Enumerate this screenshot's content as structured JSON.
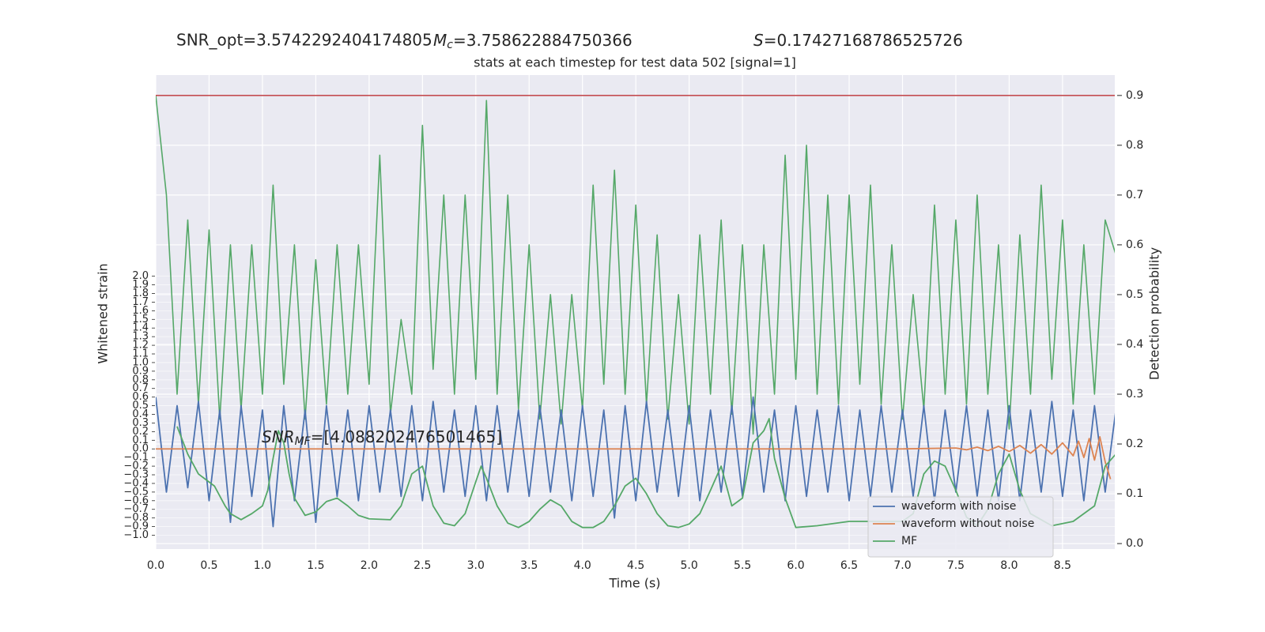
{
  "chart_data": {
    "type": "line",
    "annotations": [
      {
        "text": "SNR_opt=3.5742292404174805"
      },
      {
        "symbol": "M",
        "subscript": "c",
        "text": "=3.758622884750366"
      },
      {
        "symbol": "S",
        "text": "=0.17427168786525726"
      },
      {
        "symbol": "SNR",
        "subscript": "MF",
        "text": "=[4.088202476501465]"
      }
    ],
    "title": "stats at each timestep for test data 502 [signal=1]",
    "xlabel": "Time (s)",
    "ylabel": "Whitened strain",
    "y2label": "Detection probability",
    "xlim": [
      0,
      8.99
    ],
    "ylim": [
      -1.16,
      4.33
    ],
    "y2lim": [
      -0.011,
      0.941
    ],
    "xticks": [
      {
        "value": 0,
        "label": "0.0"
      },
      {
        "value": 0.5,
        "label": "0.5"
      },
      {
        "value": 1,
        "label": "1.0"
      },
      {
        "value": 1.5,
        "label": "1.5"
      },
      {
        "value": 2,
        "label": "2.0"
      },
      {
        "value": 2.5,
        "label": "2.5"
      },
      {
        "value": 3,
        "label": "3.0"
      },
      {
        "value": 3.5,
        "label": "3.5"
      },
      {
        "value": 4,
        "label": "4.0"
      },
      {
        "value": 4.5,
        "label": "4.5"
      },
      {
        "value": 5,
        "label": "5.0"
      },
      {
        "value": 5.5,
        "label": "5.5"
      },
      {
        "value": 6,
        "label": "6.0"
      },
      {
        "value": 6.5,
        "label": "6.5"
      },
      {
        "value": 7,
        "label": "7.0"
      },
      {
        "value": 7.5,
        "label": "7.5"
      },
      {
        "value": 8,
        "label": "8.0"
      },
      {
        "value": 8.5,
        "label": "8.5"
      }
    ],
    "yticks": [
      {
        "value": -1,
        "label": "−1.0"
      },
      {
        "value": -0.9,
        "label": "−0.9"
      },
      {
        "value": -0.8,
        "label": "−0.8"
      },
      {
        "value": -0.7,
        "label": "−0.7"
      },
      {
        "value": -0.6,
        "label": "−0.6"
      },
      {
        "value": -0.5,
        "label": "−0.5"
      },
      {
        "value": -0.4,
        "label": "−0.4"
      },
      {
        "value": -0.3,
        "label": "−0.3"
      },
      {
        "value": -0.2,
        "label": "−0.2"
      },
      {
        "value": -0.1,
        "label": "−0.1"
      },
      {
        "value": 0,
        "label": "0.0"
      },
      {
        "value": 0.1,
        "label": "0.1"
      },
      {
        "value": 0.2,
        "label": "0.2"
      },
      {
        "value": 0.3,
        "label": "0.3"
      },
      {
        "value": 0.4,
        "label": "0.4"
      },
      {
        "value": 0.5,
        "label": "0.5"
      },
      {
        "value": 0.6,
        "label": "0.6"
      },
      {
        "value": 0.7,
        "label": "0.7"
      },
      {
        "value": 0.8,
        "label": "0.8"
      },
      {
        "value": 0.9,
        "label": "0.9"
      },
      {
        "value": 1,
        "label": "1.0"
      },
      {
        "value": 1.1,
        "label": "1.1"
      },
      {
        "value": 1.2,
        "label": "1.2"
      },
      {
        "value": 1.3,
        "label": "1.3"
      },
      {
        "value": 1.4,
        "label": "1.4"
      },
      {
        "value": 1.5,
        "label": "1.5"
      },
      {
        "value": 1.6,
        "label": "1.6"
      },
      {
        "value": 1.7,
        "label": "1.7"
      },
      {
        "value": 1.8,
        "label": "1.8"
      },
      {
        "value": 1.9,
        "label": "1.9"
      },
      {
        "value": 2,
        "label": "2.0"
      }
    ],
    "y2ticks": [
      {
        "value": 0,
        "label": "0.0"
      },
      {
        "value": 0.1,
        "label": "0.1"
      },
      {
        "value": 0.2,
        "label": "0.2"
      },
      {
        "value": 0.3,
        "label": "0.3"
      },
      {
        "value": 0.4,
        "label": "0.4"
      },
      {
        "value": 0.5,
        "label": "0.5"
      },
      {
        "value": 0.6,
        "label": "0.6"
      },
      {
        "value": 0.7,
        "label": "0.7"
      },
      {
        "value": 0.8,
        "label": "0.8"
      },
      {
        "value": 0.9,
        "label": "0.9"
      }
    ],
    "grid": true,
    "legend": "lower right",
    "hlines": [
      {
        "value": 0.9,
        "axis": "y2",
        "color": "#c44e52"
      }
    ],
    "series": [
      {
        "axis": "y2",
        "color": "#55a868",
        "x": [
          0,
          0.1,
          0.2,
          0.3,
          0.4,
          0.5,
          0.6,
          0.7,
          0.8,
          0.9,
          1,
          1.1,
          1.2,
          1.3,
          1.4,
          1.5,
          1.6,
          1.7,
          1.8,
          1.9,
          2,
          2.1,
          2.2,
          2.3,
          2.4,
          2.5,
          2.6,
          2.7,
          2.8,
          2.9,
          3,
          3.1,
          3.2,
          3.3,
          3.4,
          3.5,
          3.6,
          3.7,
          3.8,
          3.9,
          4,
          4.1,
          4.2,
          4.3,
          4.4,
          4.5,
          4.6,
          4.7,
          4.8,
          4.9,
          5,
          5.1,
          5.2,
          5.3,
          5.4,
          5.5,
          5.6,
          5.7,
          5.8,
          5.9,
          6,
          6.1,
          6.2,
          6.3,
          6.4,
          6.5,
          6.6,
          6.7,
          6.8,
          6.9,
          7,
          7.1,
          7.2,
          7.3,
          7.4,
          7.5,
          7.6,
          7.7,
          7.8,
          7.9,
          8,
          8.1,
          8.2,
          8.3,
          8.4,
          8.5,
          8.6,
          8.7,
          8.8,
          8.9,
          9
        ],
        "values": [
          0.9,
          0.7,
          0.3,
          0.65,
          0.28,
          0.63,
          0.25,
          0.6,
          0.27,
          0.6,
          0.3,
          0.72,
          0.32,
          0.6,
          0.25,
          0.57,
          0.28,
          0.6,
          0.3,
          0.6,
          0.32,
          0.78,
          0.26,
          0.45,
          0.3,
          0.84,
          0.35,
          0.7,
          0.3,
          0.7,
          0.33,
          0.89,
          0.3,
          0.7,
          0.27,
          0.6,
          0.25,
          0.5,
          0.24,
          0.5,
          0.27,
          0.72,
          0.32,
          0.75,
          0.3,
          0.68,
          0.28,
          0.62,
          0.25,
          0.5,
          0.24,
          0.62,
          0.3,
          0.65,
          0.26,
          0.6,
          0.22,
          0.6,
          0.3,
          0.78,
          0.33,
          0.8,
          0.3,
          0.7,
          0.28,
          0.7,
          0.32,
          0.72,
          0.28,
          0.6,
          0.25,
          0.5,
          0.27,
          0.68,
          0.3,
          0.65,
          0.28,
          0.7,
          0.3,
          0.6,
          0.23,
          0.62,
          0.3,
          0.72,
          0.33,
          0.65,
          0.28,
          0.6,
          0.3,
          0.65,
          0.58
        ]
      },
      {
        "name": "waveform with noise",
        "color": "#4c72b0",
        "x": [
          0,
          0.1,
          0.2,
          0.3,
          0.4,
          0.5,
          0.6,
          0.7,
          0.8,
          0.9,
          1,
          1.1,
          1.2,
          1.3,
          1.4,
          1.5,
          1.6,
          1.7,
          1.8,
          1.9,
          2,
          2.1,
          2.2,
          2.3,
          2.4,
          2.5,
          2.6,
          2.7,
          2.8,
          2.9,
          3,
          3.1,
          3.2,
          3.3,
          3.4,
          3.5,
          3.6,
          3.7,
          3.8,
          3.9,
          4,
          4.1,
          4.2,
          4.3,
          4.4,
          4.5,
          4.6,
          4.7,
          4.8,
          4.9,
          5,
          5.1,
          5.2,
          5.3,
          5.4,
          5.5,
          5.6,
          5.7,
          5.8,
          5.9,
          6,
          6.1,
          6.2,
          6.3,
          6.4,
          6.5,
          6.6,
          6.7,
          6.8,
          6.9,
          7,
          7.1,
          7.2,
          7.3,
          7.4,
          7.5,
          7.6,
          7.7,
          7.8,
          7.9,
          8,
          8.1,
          8.2,
          8.3,
          8.4,
          8.5,
          8.6,
          8.7,
          8.8,
          8.9,
          9
        ],
        "values": [
          0.6,
          -0.5,
          0.5,
          -0.45,
          0.55,
          -0.6,
          0.45,
          -0.85,
          0.5,
          -0.55,
          0.45,
          -0.9,
          0.5,
          -0.6,
          0.45,
          -0.85,
          0.5,
          -0.55,
          0.45,
          -0.6,
          0.5,
          -0.5,
          0.45,
          -0.55,
          0.5,
          -0.6,
          0.55,
          -0.5,
          0.45,
          -0.55,
          0.5,
          -0.6,
          0.5,
          -0.5,
          0.45,
          -0.55,
          0.5,
          -0.5,
          0.45,
          -0.6,
          0.5,
          -0.55,
          0.45,
          -0.8,
          0.5,
          -0.6,
          0.55,
          -0.5,
          0.45,
          -0.55,
          0.5,
          -0.6,
          0.45,
          -0.5,
          0.5,
          -0.55,
          0.6,
          -0.5,
          0.45,
          -0.6,
          0.5,
          -0.55,
          0.45,
          -0.5,
          0.5,
          -0.6,
          0.45,
          -0.55,
          0.5,
          -0.5,
          0.45,
          -0.55,
          0.5,
          -0.6,
          0.45,
          -0.5,
          0.5,
          -0.55,
          0.45,
          -0.6,
          0.5,
          -0.6,
          0.45,
          -0.5,
          0.55,
          -0.55,
          0.45,
          -0.6,
          0.5,
          -0.5,
          0.45
        ]
      },
      {
        "name": "waveform without noise",
        "color": "#dd8452",
        "x": [
          0,
          1,
          2,
          3,
          4,
          5,
          6,
          7,
          7.5,
          7.6,
          7.7,
          7.8,
          7.9,
          8,
          8.1,
          8.2,
          8.3,
          8.4,
          8.5,
          8.6,
          8.65,
          8.7,
          8.75,
          8.8,
          8.85,
          8.9,
          8.95
        ],
        "values": [
          0,
          0,
          0,
          0,
          0,
          0,
          0,
          0,
          0.01,
          -0.01,
          0.02,
          -0.02,
          0.03,
          -0.03,
          0.04,
          -0.05,
          0.05,
          -0.06,
          0.07,
          -0.08,
          0.09,
          -0.1,
          0.12,
          -0.13,
          0.14,
          -0.15,
          -0.35
        ]
      },
      {
        "name": "MF",
        "color": "#55a868",
        "x": [
          0.2,
          0.3,
          0.4,
          0.55,
          0.65,
          0.7,
          0.8,
          0.9,
          1,
          1.05,
          1.1,
          1.15,
          1.2,
          1.25,
          1.3,
          1.4,
          1.5,
          1.6,
          1.7,
          1.8,
          1.9,
          2,
          2.2,
          2.3,
          2.4,
          2.5,
          2.6,
          2.7,
          2.8,
          2.9,
          3,
          3.05,
          3.1,
          3.2,
          3.3,
          3.4,
          3.5,
          3.6,
          3.7,
          3.8,
          3.9,
          4,
          4.1,
          4.2,
          4.3,
          4.4,
          4.5,
          4.6,
          4.7,
          4.8,
          4.9,
          5,
          5.1,
          5.2,
          5.3,
          5.4,
          5.5,
          5.6,
          5.7,
          5.75,
          5.8,
          5.9,
          6,
          6.2,
          6.5,
          7,
          7.1,
          7.2,
          7.3,
          7.4,
          7.5,
          7.6,
          7.7,
          7.8,
          7.9,
          8,
          8.1,
          8.2,
          8.4,
          8.6,
          8.8,
          8.9,
          9
        ],
        "values": [
          0.26,
          -0.06,
          -0.29,
          -0.43,
          -0.66,
          -0.75,
          -0.82,
          -0.75,
          -0.66,
          -0.48,
          -0.11,
          0.21,
          0.07,
          -0.29,
          -0.57,
          -0.77,
          -0.73,
          -0.61,
          -0.57,
          -0.66,
          -0.77,
          -0.81,
          -0.82,
          -0.66,
          -0.29,
          -0.2,
          -0.66,
          -0.86,
          -0.89,
          -0.75,
          -0.38,
          -0.2,
          -0.34,
          -0.66,
          -0.86,
          -0.91,
          -0.84,
          -0.7,
          -0.59,
          -0.66,
          -0.84,
          -0.91,
          -0.91,
          -0.84,
          -0.66,
          -0.43,
          -0.34,
          -0.52,
          -0.75,
          -0.89,
          -0.91,
          -0.87,
          -0.75,
          -0.48,
          -0.2,
          -0.66,
          -0.57,
          0.07,
          0.21,
          0.35,
          -0.11,
          -0.57,
          -0.91,
          -0.89,
          -0.84,
          -0.84,
          -0.75,
          -0.29,
          -0.14,
          -0.2,
          -0.48,
          -0.79,
          -0.89,
          -0.7,
          -0.29,
          -0.06,
          -0.48,
          -0.75,
          -0.89,
          -0.84,
          -0.66,
          -0.2,
          -0.06
        ]
      }
    ]
  }
}
